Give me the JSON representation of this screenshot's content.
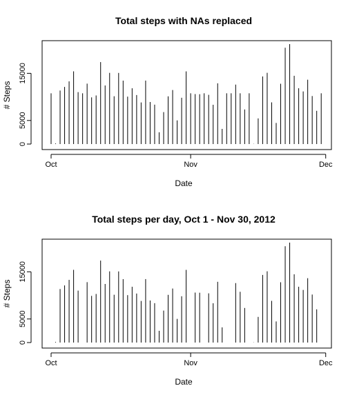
{
  "chart_data": [
    {
      "type": "bar",
      "title": "Total steps with NAs replaced",
      "xlabel": "Date",
      "ylabel": "# Steps",
      "x_ticks": [
        "Oct",
        "Nov",
        "Dec"
      ],
      "y_ticks": [
        "0",
        "5000",
        "15000"
      ],
      "ylim": [
        0,
        21194
      ],
      "values": [
        10766,
        126,
        11352,
        12116,
        13294,
        15420,
        11015,
        10766,
        12811,
        9900,
        10304,
        17382,
        12426,
        15098,
        10139,
        15084,
        13452,
        10056,
        11829,
        10395,
        8821,
        13460,
        8918,
        8355,
        2492,
        6778,
        10119,
        11458,
        5018,
        9819,
        15414,
        10766,
        10600,
        10571,
        10766,
        10439,
        8334,
        12883,
        3219,
        10766,
        10766,
        12608,
        10765,
        7336,
        10766,
        41,
        5441,
        14339,
        15110,
        8841,
        4472,
        12787,
        20427,
        21194,
        14478,
        11834,
        11162,
        13646,
        10183,
        7047,
        10766
      ]
    },
    {
      "type": "bar",
      "title": "Total steps per day, Oct 1 - Nov 30, 2012",
      "xlabel": "Date",
      "ylabel": "# Steps",
      "x_ticks": [
        "Oct",
        "Nov",
        "Dec"
      ],
      "y_ticks": [
        "0",
        "5000",
        "15000"
      ],
      "ylim": [
        0,
        21194
      ],
      "values": [
        null,
        126,
        11352,
        12116,
        13294,
        15420,
        11015,
        null,
        12811,
        9900,
        10304,
        17382,
        12426,
        15098,
        10139,
        15084,
        13452,
        10056,
        11829,
        10395,
        8821,
        13460,
        8918,
        8355,
        2492,
        6778,
        10119,
        11458,
        5018,
        9819,
        15414,
        null,
        10600,
        10571,
        null,
        10439,
        8334,
        12883,
        3219,
        null,
        null,
        12608,
        10765,
        7336,
        null,
        41,
        5441,
        14339,
        15110,
        8841,
        4472,
        12787,
        20427,
        21194,
        14478,
        11834,
        11162,
        13646,
        10183,
        7047,
        null
      ]
    }
  ]
}
